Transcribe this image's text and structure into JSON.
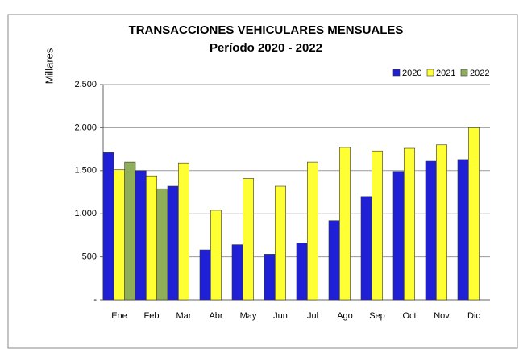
{
  "chart_data": {
    "type": "bar",
    "title": "TRANSACCIONES VEHICULARES MENSUALES",
    "subtitle": "Período 2020 - 2022",
    "y_label": "Millares",
    "categories": [
      "Ene",
      "Feb",
      "Mar",
      "Abr",
      "May",
      "Jun",
      "Jul",
      "Ago",
      "Sep",
      "Oct",
      "Nov",
      "Dic"
    ],
    "series": [
      {
        "name": "2020",
        "color": "#1f1fd6",
        "values": [
          1710,
          1500,
          1320,
          580,
          640,
          530,
          660,
          920,
          1200,
          1490,
          1610,
          1630
        ]
      },
      {
        "name": "2021",
        "color": "#ffff33",
        "values": [
          1510,
          1440,
          1590,
          1040,
          1410,
          1320,
          1600,
          1770,
          1730,
          1760,
          1800,
          2000
        ]
      },
      {
        "name": "2022",
        "color": "#8fae5a",
        "values": [
          1600,
          1290,
          null,
          null,
          null,
          null,
          null,
          null,
          null,
          null,
          null,
          null
        ]
      }
    ],
    "ylim": [
      0,
      2500
    ],
    "yticks": [
      {
        "value": 0,
        "label": "-"
      },
      500,
      {
        "value": 1000,
        "label": "1.000"
      },
      {
        "value": 1500,
        "label": "1.500"
      },
      {
        "value": 2000,
        "label": "2.000"
      },
      {
        "value": 2500,
        "label": "2.500"
      }
    ],
    "grid": true,
    "legend": "top-right"
  }
}
